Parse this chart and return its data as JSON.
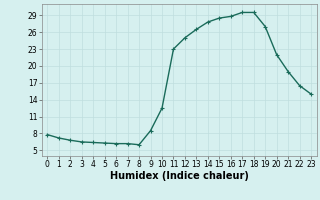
{
  "x": [
    0,
    1,
    2,
    3,
    4,
    5,
    6,
    7,
    8,
    9,
    10,
    11,
    12,
    13,
    14,
    15,
    16,
    17,
    18,
    19,
    20,
    21,
    22,
    23
  ],
  "y": [
    7.8,
    7.2,
    6.8,
    6.5,
    6.4,
    6.3,
    6.2,
    6.2,
    6.0,
    8.5,
    12.5,
    23.0,
    25.0,
    26.5,
    27.8,
    28.5,
    28.8,
    29.5,
    29.5,
    27.0,
    22.0,
    19.0,
    16.5,
    15.0
  ],
  "line_color": "#1a6b5a",
  "marker": "+",
  "marker_size": 3,
  "bg_color": "#d6f0ef",
  "grid_color": "#c0dede",
  "xlabel": "Humidex (Indice chaleur)",
  "ylim": [
    4,
    31
  ],
  "xlim": [
    -0.5,
    23.5
  ],
  "yticks": [
    5,
    8,
    11,
    14,
    17,
    20,
    23,
    26,
    29
  ],
  "xticks": [
    0,
    1,
    2,
    3,
    4,
    5,
    6,
    7,
    8,
    9,
    10,
    11,
    12,
    13,
    14,
    15,
    16,
    17,
    18,
    19,
    20,
    21,
    22,
    23
  ],
  "tick_fontsize": 5.5,
  "label_fontsize": 7.0,
  "line_width": 1.0
}
